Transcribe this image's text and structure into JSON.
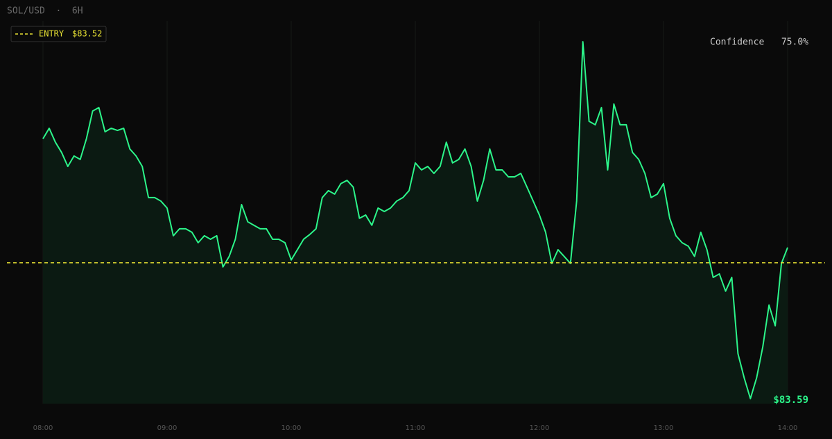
{
  "chart_data": {
    "type": "line",
    "title": "SOL/USD  ·  6H",
    "categories": [
      "08:00",
      null,
      null,
      null,
      null,
      null,
      null,
      null,
      null,
      null,
      null,
      null,
      null,
      null,
      null,
      null,
      null,
      null,
      null,
      null,
      "09:00",
      null,
      null,
      null,
      null,
      null,
      null,
      null,
      null,
      null,
      null,
      null,
      null,
      null,
      null,
      null,
      null,
      null,
      null,
      null,
      "10:00",
      null,
      null,
      null,
      null,
      null,
      null,
      null,
      null,
      null,
      null,
      null,
      null,
      null,
      null,
      null,
      null,
      null,
      null,
      null,
      "11:00",
      null,
      null,
      null,
      null,
      null,
      null,
      null,
      null,
      null,
      null,
      null,
      null,
      null,
      null,
      null,
      null,
      null,
      null,
      null,
      "12:00",
      null,
      null,
      null,
      null,
      null,
      null,
      null,
      null,
      null,
      null,
      null,
      null,
      null,
      null,
      null,
      null,
      null,
      null,
      null,
      "13:00",
      null,
      null,
      null,
      null,
      null,
      null,
      null,
      null,
      null,
      null,
      null,
      null,
      null,
      null,
      null,
      null,
      null,
      null,
      null,
      "14:00"
    ],
    "values": [
      84.089,
      84.137,
      84.073,
      84.026,
      83.962,
      84.01,
      83.994,
      84.089,
      84.216,
      84.232,
      84.121,
      84.137,
      84.127,
      84.137,
      84.042,
      84.01,
      83.962,
      83.819,
      83.819,
      83.803,
      83.771,
      83.644,
      83.676,
      83.676,
      83.66,
      83.612,
      83.644,
      83.628,
      83.644,
      83.501,
      83.549,
      83.628,
      83.787,
      83.708,
      83.692,
      83.676,
      83.676,
      83.628,
      83.628,
      83.612,
      83.533,
      83.58,
      83.628,
      83.65,
      83.676,
      83.819,
      83.851,
      83.835,
      83.883,
      83.898,
      83.867,
      83.724,
      83.739,
      83.692,
      83.771,
      83.755,
      83.771,
      83.803,
      83.819,
      83.851,
      83.978,
      83.946,
      83.962,
      83.93,
      83.962,
      84.073,
      83.978,
      83.994,
      84.042,
      83.962,
      83.803,
      83.898,
      84.042,
      83.946,
      83.946,
      83.914,
      83.914,
      83.93,
      83.867,
      83.803,
      83.739,
      83.66,
      83.517,
      83.58,
      83.549,
      83.517,
      83.803,
      84.534,
      84.169,
      84.153,
      84.232,
      83.946,
      84.248,
      84.153,
      84.153,
      84.026,
      83.994,
      83.93,
      83.819,
      83.835,
      83.883,
      83.724,
      83.644,
      83.612,
      83.596,
      83.549,
      83.66,
      83.58,
      83.453,
      83.469,
      83.39,
      83.453,
      83.103,
      82.992,
      82.897,
      82.992,
      83.135,
      83.326,
      83.231,
      83.517,
      83.59
    ],
    "color": "#2cf58a",
    "fill_color": "#0b1a12",
    "ylim": [
      82.874,
      84.598
    ],
    "grid": true,
    "entry": {
      "label": "ENTRY",
      "value": 83.52,
      "value_label": "$83.52",
      "color": "#e6e033"
    },
    "last_label": "$83.59",
    "confidence": {
      "label": "Confidence",
      "value_label": "75.0%"
    }
  }
}
